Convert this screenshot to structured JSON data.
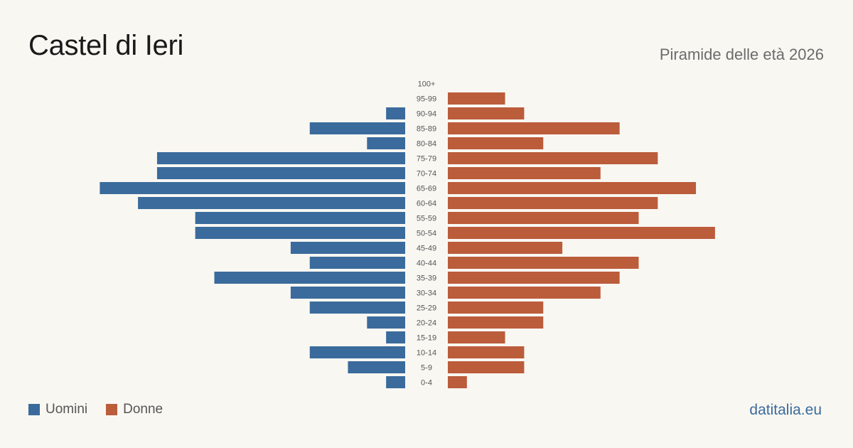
{
  "header": {
    "title": "Castel di Ieri",
    "subtitle": "Piramide delle età 2026"
  },
  "legend": {
    "men_label": "Uomini",
    "women_label": "Donne"
  },
  "footer": {
    "brand": "datitalia.eu"
  },
  "colors": {
    "men": "#3a6b9c",
    "women": "#bb5c3b"
  },
  "chart_data": {
    "type": "bar",
    "orientation": "horizontal-pyramid",
    "categories": [
      "100+",
      "95-99",
      "90-94",
      "85-89",
      "80-84",
      "75-79",
      "70-74",
      "65-69",
      "60-64",
      "55-59",
      "50-54",
      "45-49",
      "40-44",
      "35-39",
      "30-34",
      "25-29",
      "20-24",
      "15-19",
      "10-14",
      "5-9",
      "0-4"
    ],
    "series": [
      {
        "name": "Uomini",
        "values": [
          0,
          0,
          1,
          5,
          2,
          13,
          13,
          16,
          14,
          11,
          11,
          6,
          5,
          10,
          6,
          5,
          2,
          1,
          5,
          3,
          1
        ]
      },
      {
        "name": "Donne",
        "values": [
          0,
          3,
          4,
          9,
          5,
          11,
          8,
          13,
          11,
          10,
          14,
          6,
          10,
          9,
          8,
          5,
          5,
          3,
          4,
          4,
          1
        ]
      }
    ],
    "legend_position": "bottom-left",
    "grid": false
  }
}
